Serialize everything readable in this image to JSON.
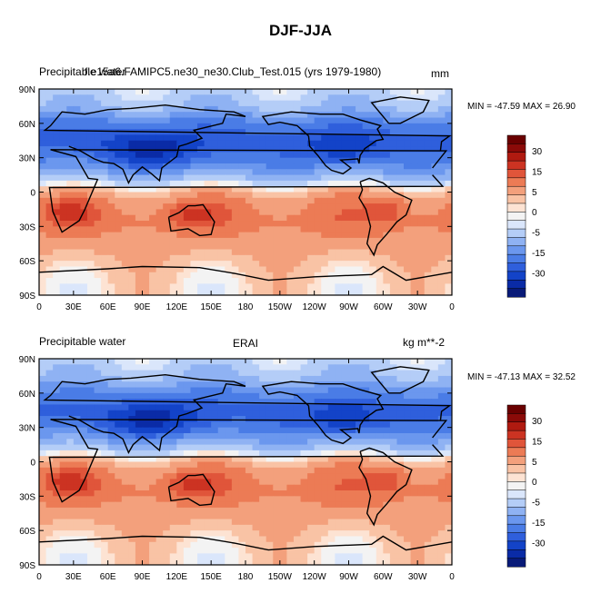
{
  "figure": {
    "title": "DJF-JJA"
  },
  "chart_data": [
    {
      "type": "heatmap",
      "panel": "top",
      "variable": "Precipitable water",
      "title": "f.e15a6.FAMIPC5.ne30_ne30.Club_Test.015 (yrs 1979-1980)",
      "units": "mm",
      "stats": "MIN = -47.59 MAX =  26.90",
      "min": -47.59,
      "max": 26.9,
      "x_ticks": [
        "0",
        "30E",
        "60E",
        "90E",
        "120E",
        "150E",
        "180",
        "150W",
        "120W",
        "90W",
        "60W",
        "30W",
        "0"
      ],
      "y_ticks": [
        "90N",
        "60N",
        "30N",
        "0",
        "30S",
        "60S",
        "90S"
      ],
      "colorbar_labels": [
        "30",
        "15",
        "5",
        "0",
        "-5",
        "-15",
        "-30"
      ],
      "lat_profile": [
        {
          "lat": 90,
          "v": -5
        },
        {
          "lat": 75,
          "v": -10
        },
        {
          "lat": 60,
          "v": -22
        },
        {
          "lat": 45,
          "v": -28
        },
        {
          "lat": 30,
          "v": -22
        },
        {
          "lat": 20,
          "v": -16
        },
        {
          "lat": 10,
          "v": -8
        },
        {
          "lat": 5,
          "v": 1
        },
        {
          "lat": 0,
          "v": 5
        },
        {
          "lat": -10,
          "v": 11
        },
        {
          "lat": -25,
          "v": 13
        },
        {
          "lat": -40,
          "v": 9
        },
        {
          "lat": -55,
          "v": 5
        },
        {
          "lat": -70,
          "v": 2
        },
        {
          "lat": -90,
          "v": 1
        }
      ]
    },
    {
      "type": "heatmap",
      "panel": "bottom",
      "variable": "Precipitable water",
      "title": "ERAI",
      "units": "kg m**-2",
      "stats": "MIN = -47.13 MAX =  32.52",
      "min": -47.13,
      "max": 32.52,
      "x_ticks": [
        "0",
        "30E",
        "60E",
        "90E",
        "120E",
        "150E",
        "180",
        "150W",
        "120W",
        "90W",
        "60W",
        "30W",
        "0"
      ],
      "y_ticks": [
        "90N",
        "60N",
        "30N",
        "0",
        "30S",
        "60S",
        "90S"
      ],
      "colorbar_labels": [
        "30",
        "15",
        "5",
        "0",
        "-5",
        "-15",
        "-30"
      ],
      "lat_profile": [
        {
          "lat": 90,
          "v": -5
        },
        {
          "lat": 75,
          "v": -10
        },
        {
          "lat": 60,
          "v": -20
        },
        {
          "lat": 45,
          "v": -27
        },
        {
          "lat": 30,
          "v": -22
        },
        {
          "lat": 20,
          "v": -15
        },
        {
          "lat": 10,
          "v": -7
        },
        {
          "lat": 5,
          "v": 1
        },
        {
          "lat": 0,
          "v": 5
        },
        {
          "lat": -10,
          "v": 11
        },
        {
          "lat": -25,
          "v": 13
        },
        {
          "lat": -40,
          "v": 9
        },
        {
          "lat": -55,
          "v": 5
        },
        {
          "lat": -70,
          "v": 2
        },
        {
          "lat": -90,
          "v": 1
        }
      ]
    }
  ],
  "colorbar": {
    "levels": [
      -40,
      -35,
      -30,
      -25,
      -20,
      -15,
      -10,
      -5,
      -2,
      0,
      2,
      5,
      10,
      15,
      20,
      25,
      30,
      35
    ],
    "colors": [
      "#081a78",
      "#0a2ba6",
      "#1343c8",
      "#2f5fdc",
      "#4a7ce6",
      "#6b97ee",
      "#8fb2f3",
      "#b4cdf7",
      "#dae6fb",
      "#f3f3f3",
      "#fde3d3",
      "#f9c3a5",
      "#f3a07c",
      "#ec7b55",
      "#e0553a",
      "#cc3322",
      "#b01a10",
      "#8b0a08",
      "#6a0000"
    ]
  }
}
